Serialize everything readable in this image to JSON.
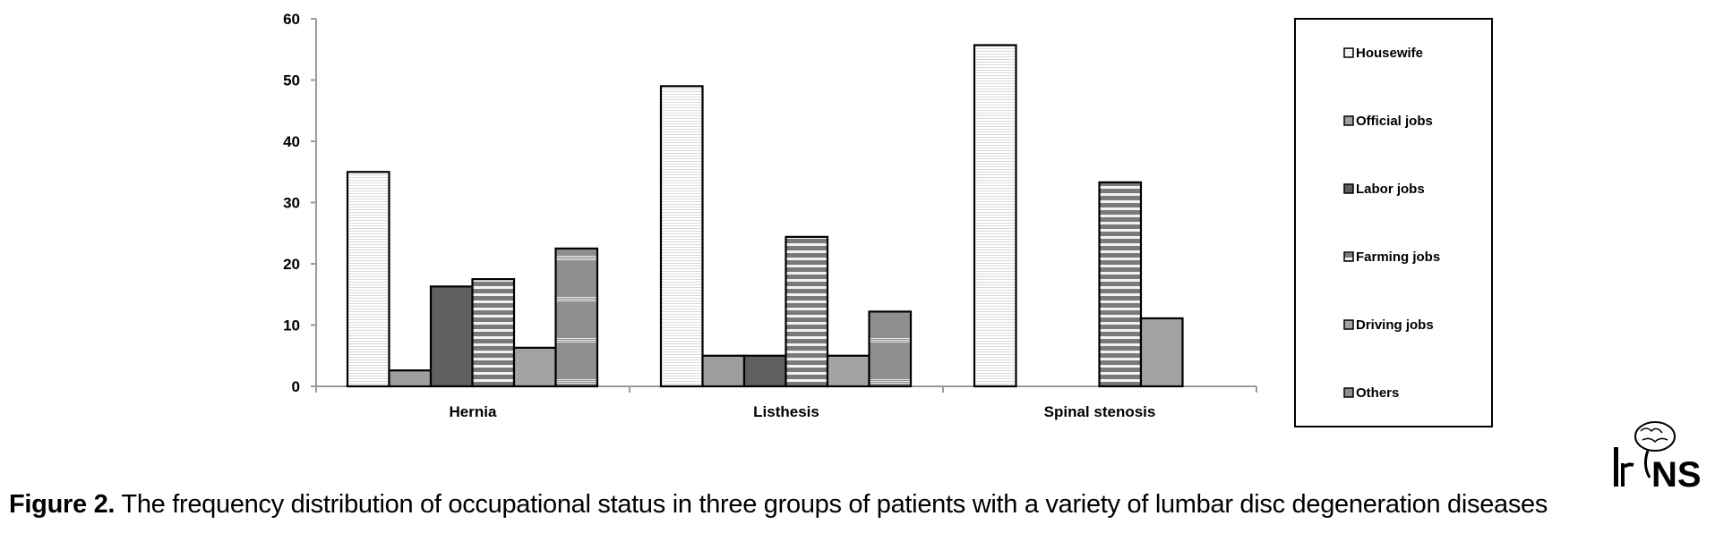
{
  "chart_data": {
    "type": "bar",
    "categories": [
      "Hernia",
      "Listhesis",
      "Spinal stenosis"
    ],
    "yticks": [
      0,
      10,
      20,
      30,
      40,
      50,
      60
    ],
    "ylim": [
      0,
      60
    ],
    "legend_position": "right",
    "series": [
      {
        "name": "Housewife",
        "values": [
          35,
          49,
          55.7
        ],
        "color": "#ffffff",
        "pattern": "hlines-fine"
      },
      {
        "name": "Official jobs",
        "values": [
          2.6,
          5,
          0
        ],
        "color": "#9e9e9e",
        "pattern": "none"
      },
      {
        "name": "Labor jobs",
        "values": [
          16.3,
          5,
          0
        ],
        "color": "#5f5f5f",
        "pattern": "none"
      },
      {
        "name": "Farming jobs",
        "values": [
          17.5,
          24.4,
          33.3
        ],
        "color": "#7f7f7f",
        "pattern": "hlines-bold"
      },
      {
        "name": "Driving jobs",
        "values": [
          6.3,
          5,
          11.1
        ],
        "color": "#a3a3a3",
        "pattern": "none"
      },
      {
        "name": "Others",
        "values": [
          22.5,
          12.2,
          0
        ],
        "color": "#8f8f8f",
        "pattern": "hbands"
      }
    ]
  },
  "caption": {
    "label": "Figure 2.",
    "text": " The frequency distribution of occupational status in three groups of patients with a variety of lumbar disc degeneration diseases"
  },
  "logo": {
    "text": "IrJNS"
  }
}
